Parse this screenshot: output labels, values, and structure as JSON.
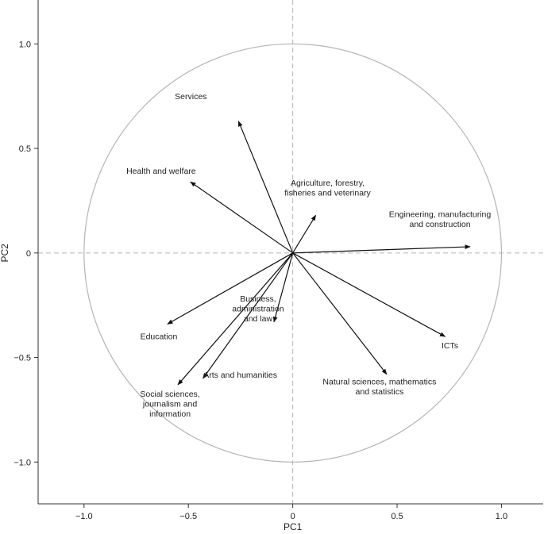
{
  "chart_data": {
    "type": "biplot",
    "xlabel": "PC1",
    "ylabel": "PC2",
    "xlim": [
      -1.22,
      1.2
    ],
    "ylim": [
      -1.2,
      1.21
    ],
    "xticks": [
      -1.0,
      -0.5,
      0,
      0.5,
      1.0
    ],
    "xtick_labels": [
      "−1.0",
      "−0.5",
      "0",
      "0.5",
      "1.0"
    ],
    "yticks": [
      1.0,
      0.5,
      0,
      -0.5,
      -1.0
    ],
    "ytick_labels": [
      "1.0",
      "0.5",
      "0",
      "−0.5",
      "−1.0"
    ],
    "reference_circle_radius": 1.0,
    "reference_lines": "dashed at x=0 and y=0",
    "grid": false,
    "colors": {
      "arrow": "#111111",
      "circle": "#b5b5b5",
      "reference_line": "#b5b5b5",
      "axis": "#333333"
    },
    "vectors": [
      {
        "name": "Services",
        "label_lines": [
          "Services"
        ],
        "x": -0.26,
        "y": 0.63
      },
      {
        "name": "Health and welfare",
        "label_lines": [
          "Health and welfare"
        ],
        "x": -0.49,
        "y": 0.34
      },
      {
        "name": "Agriculture, forestry, fisheries and veterinary",
        "label_lines": [
          "Agriculture, forestry,",
          "fisheries and veterinary"
        ],
        "x": 0.11,
        "y": 0.18
      },
      {
        "name": "Engineering, manufacturing and construction",
        "label_lines": [
          "Engineering, manufacturing",
          "and construction"
        ],
        "x": 0.85,
        "y": 0.03
      },
      {
        "name": "ICTs",
        "label_lines": [
          "ICTs"
        ],
        "x": 0.73,
        "y": -0.4
      },
      {
        "name": "Natural sciences, mathematics and statistics",
        "label_lines": [
          "Natural sciences, mathematics",
          "and statistics"
        ],
        "x": 0.45,
        "y": -0.58
      },
      {
        "name": "Business, administration and law",
        "label_lines": [
          "Business,",
          "administration",
          "and law"
        ],
        "x": -0.09,
        "y": -0.33
      },
      {
        "name": "Arts and humanities",
        "label_lines": [
          "Arts and humanities"
        ],
        "x": -0.43,
        "y": -0.6
      },
      {
        "name": "Social sciences, journalism and information",
        "label_lines": [
          "Social sciences,",
          "journalism and",
          "information"
        ],
        "x": -0.55,
        "y": -0.63
      },
      {
        "name": "Education",
        "label_lines": [
          "Education"
        ],
        "x": -0.6,
        "y": -0.34
      }
    ]
  }
}
